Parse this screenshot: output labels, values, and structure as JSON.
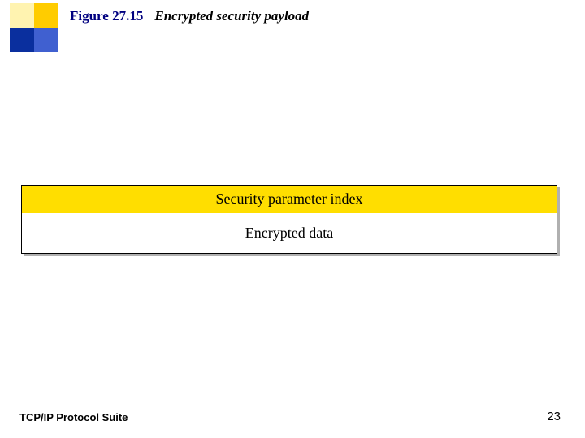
{
  "logo": {
    "colors": {
      "tl": "#fff3b0",
      "tr": "#ffcc00",
      "bl": "#0a2f9e",
      "br": "#4060d0"
    }
  },
  "header": {
    "figure_number": "Figure 27.15",
    "figure_title": "Encrypted security payload",
    "figure_number_color": "#000080",
    "rule_color": "#d9d9d9"
  },
  "payload": {
    "rows": [
      {
        "label": "Security parameter index",
        "bg": "#ffde00"
      },
      {
        "label": "Encrypted data",
        "bg": "#ffffff"
      }
    ],
    "border_color": "#000000",
    "shadow_color": "#b0b0b0",
    "font_size_pt": 18
  },
  "footer": {
    "left_text": "TCP/IP Protocol Suite",
    "page_number": "23"
  }
}
